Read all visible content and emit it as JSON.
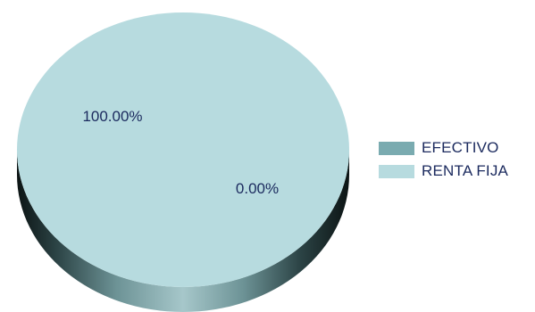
{
  "chart_data": {
    "type": "pie",
    "title": "",
    "slices": [
      {
        "label": "EFECTIVO",
        "value": 0.0,
        "display": "0.00%",
        "color": "#7aabb0"
      },
      {
        "label": "RENTA FIJA",
        "value": 100.0,
        "display": "100.00%",
        "color": "#b7dbdf"
      }
    ],
    "legend_position": "right",
    "style": "3d"
  }
}
